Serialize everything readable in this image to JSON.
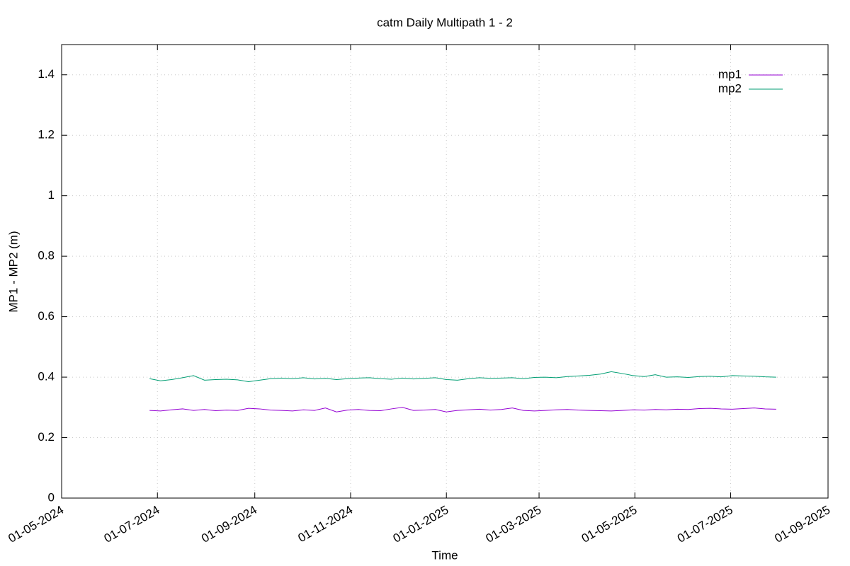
{
  "chart_data": {
    "type": "line",
    "title": "catm Daily Multipath 1 - 2",
    "x_label": "Time",
    "y_label": "MP1 - MP2 (m)",
    "x": [
      "26-06-2024",
      "03-07-2024",
      "10-07-2024",
      "17-07-2024",
      "24-07-2024",
      "31-07-2024",
      "07-08-2024",
      "14-08-2024",
      "21-08-2024",
      "28-08-2024",
      "04-09-2024",
      "11-09-2024",
      "18-09-2024",
      "25-09-2024",
      "02-10-2024",
      "09-10-2024",
      "16-10-2024",
      "23-10-2024",
      "30-10-2024",
      "06-11-2024",
      "13-11-2024",
      "20-11-2024",
      "27-11-2024",
      "04-12-2024",
      "11-12-2024",
      "18-12-2024",
      "25-12-2024",
      "01-01-2025",
      "08-01-2025",
      "15-01-2025",
      "22-01-2025",
      "29-01-2025",
      "05-02-2025",
      "12-02-2025",
      "19-02-2025",
      "26-02-2025",
      "05-03-2025",
      "12-03-2025",
      "19-03-2025",
      "26-03-2025",
      "02-04-2025",
      "09-04-2025",
      "16-04-2025",
      "23-04-2025",
      "30-04-2025",
      "07-05-2025",
      "14-05-2025",
      "21-05-2025",
      "28-05-2025",
      "04-06-2025",
      "11-06-2025",
      "18-06-2025",
      "25-06-2025",
      "02-07-2025",
      "09-07-2025",
      "16-07-2025",
      "23-07-2025",
      "30-07-2025"
    ],
    "series": [
      {
        "name": "mp1",
        "color": "#9400d3",
        "values": [
          0.29,
          0.288,
          0.292,
          0.295,
          0.29,
          0.293,
          0.289,
          0.291,
          0.29,
          0.297,
          0.295,
          0.291,
          0.29,
          0.288,
          0.292,
          0.29,
          0.298,
          0.285,
          0.291,
          0.293,
          0.29,
          0.289,
          0.295,
          0.3,
          0.29,
          0.291,
          0.293,
          0.285,
          0.29,
          0.292,
          0.294,
          0.291,
          0.293,
          0.298,
          0.29,
          0.288,
          0.29,
          0.292,
          0.293,
          0.291,
          0.29,
          0.289,
          0.288,
          0.29,
          0.292,
          0.291,
          0.293,
          0.292,
          0.294,
          0.293,
          0.296,
          0.297,
          0.295,
          0.294,
          0.296,
          0.298,
          0.295,
          0.294
        ]
      },
      {
        "name": "mp2",
        "color": "#009e73",
        "values": [
          0.395,
          0.388,
          0.392,
          0.398,
          0.405,
          0.39,
          0.392,
          0.393,
          0.391,
          0.385,
          0.39,
          0.395,
          0.397,
          0.395,
          0.398,
          0.394,
          0.396,
          0.392,
          0.395,
          0.397,
          0.398,
          0.395,
          0.393,
          0.397,
          0.394,
          0.396,
          0.398,
          0.392,
          0.39,
          0.395,
          0.398,
          0.396,
          0.397,
          0.398,
          0.395,
          0.399,
          0.4,
          0.398,
          0.402,
          0.404,
          0.406,
          0.41,
          0.418,
          0.412,
          0.405,
          0.402,
          0.408,
          0.4,
          0.401,
          0.399,
          0.402,
          0.403,
          0.401,
          0.405,
          0.404,
          0.403,
          0.401,
          0.4
        ]
      }
    ],
    "xlim": [
      "01-05-2024",
      "01-09-2025"
    ],
    "xticks": [
      "01-05-2024",
      "01-07-2024",
      "01-09-2024",
      "01-11-2024",
      "01-01-2025",
      "01-03-2025",
      "01-05-2025",
      "01-07-2025",
      "01-09-2025"
    ],
    "ylim": [
      0,
      1.5
    ],
    "yticks": [
      0,
      0.2,
      0.4,
      0.6,
      0.8,
      1,
      1.2,
      1.4
    ],
    "grid": true,
    "legend": "top-right",
    "xtick_color": "#ff0000"
  }
}
